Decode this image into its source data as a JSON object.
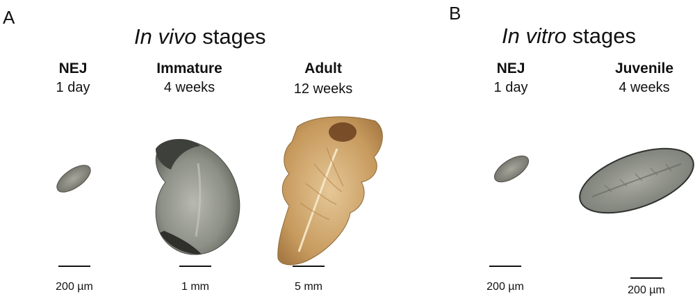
{
  "panels": {
    "a": {
      "letter": "A",
      "title_italic": "In vivo",
      "title_rest": " stages",
      "stages": [
        {
          "name": "NEJ",
          "age": "1 day",
          "scale": "200 µm"
        },
        {
          "name": "Immature",
          "age": "4 weeks",
          "scale": "1 mm"
        },
        {
          "name": "Adult",
          "age": "12 weeks",
          "scale": "5 mm"
        }
      ]
    },
    "b": {
      "letter": "B",
      "title_italic": "In vitro",
      "title_rest": " stages",
      "stages": [
        {
          "name": "NEJ",
          "age": "1 day",
          "scale": "200 µm"
        },
        {
          "name": "Juvenile",
          "age": "4 weeks",
          "scale": "200 µm"
        }
      ]
    }
  },
  "specimens": [
    {
      "label": "nej-in-vivo",
      "color": "#8a8a80"
    },
    {
      "label": "immature",
      "color": "#6f7468"
    },
    {
      "label": "adult",
      "color": "#c99a5e"
    },
    {
      "label": "nej-in-vitro",
      "color": "#8a8a80"
    },
    {
      "label": "juvenile",
      "color": "#8e9088"
    }
  ]
}
